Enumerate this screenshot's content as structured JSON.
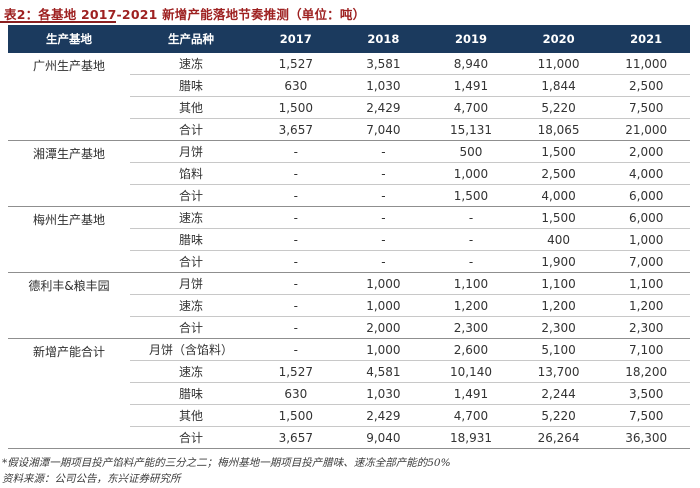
{
  "title": "表2：各基地 2017-2021 新增产能落地节奏推测（单位：吨）",
  "colors": {
    "title_red": "#9e2121",
    "header_bg": "#1b3a5e",
    "header_text": "#ffffff",
    "body_text": "#333333",
    "row_separator": "#c8c8c8",
    "group_separator": "#8f8f8f"
  },
  "table": {
    "base_header": "生产基地",
    "product_header": "生产品种",
    "years": [
      "2017",
      "2018",
      "2019",
      "2020",
      "2021"
    ],
    "groups": [
      {
        "base": "广州生产基地",
        "rows": [
          {
            "product": "速冻",
            "values": [
              "1,527",
              "3,581",
              "8,940",
              "11,000",
              "11,000"
            ]
          },
          {
            "product": "腊味",
            "values": [
              "630",
              "1,030",
              "1,491",
              "1,844",
              "2,500"
            ]
          },
          {
            "product": "其他",
            "values": [
              "1,500",
              "2,429",
              "4,700",
              "5,220",
              "7,500"
            ]
          },
          {
            "product": "合计",
            "values": [
              "3,657",
              "7,040",
              "15,131",
              "18,065",
              "21,000"
            ]
          }
        ]
      },
      {
        "base": "湘潭生产基地",
        "rows": [
          {
            "product": "月饼",
            "values": [
              "-",
              "-",
              "500",
              "1,500",
              "2,000"
            ]
          },
          {
            "product": "馅料",
            "values": [
              "-",
              "-",
              "1,000",
              "2,500",
              "4,000"
            ]
          },
          {
            "product": "合计",
            "values": [
              "-",
              "-",
              "1,500",
              "4,000",
              "6,000"
            ]
          }
        ]
      },
      {
        "base": "梅州生产基地",
        "rows": [
          {
            "product": "速冻",
            "values": [
              "-",
              "-",
              "-",
              "1,500",
              "6,000"
            ]
          },
          {
            "product": "腊味",
            "values": [
              "-",
              "-",
              "-",
              "400",
              "1,000"
            ]
          },
          {
            "product": "合计",
            "values": [
              "-",
              "-",
              "-",
              "1,900",
              "7,000"
            ]
          }
        ]
      },
      {
        "base": "德利丰&粮丰园",
        "rows": [
          {
            "product": "月饼",
            "values": [
              "-",
              "1,000",
              "1,100",
              "1,100",
              "1,100"
            ]
          },
          {
            "product": "速冻",
            "values": [
              "-",
              "1,000",
              "1,200",
              "1,200",
              "1,200"
            ]
          },
          {
            "product": "合计",
            "values": [
              "-",
              "2,000",
              "2,300",
              "2,300",
              "2,300"
            ]
          }
        ]
      },
      {
        "base": "新增产能合计",
        "rows": [
          {
            "product": "月饼（含馅料）",
            "values": [
              "-",
              "1,000",
              "2,600",
              "5,100",
              "7,100"
            ]
          },
          {
            "product": "速冻",
            "values": [
              "1,527",
              "4,581",
              "10,140",
              "13,700",
              "18,200"
            ]
          },
          {
            "product": "腊味",
            "values": [
              "630",
              "1,030",
              "1,491",
              "2,244",
              "3,500"
            ]
          },
          {
            "product": "其他",
            "values": [
              "1,500",
              "2,429",
              "4,700",
              "5,220",
              "7,500"
            ]
          },
          {
            "product": "合计",
            "values": [
              "3,657",
              "9,040",
              "18,931",
              "26,264",
              "36,300"
            ]
          }
        ]
      }
    ]
  },
  "footnotes": {
    "assumption": "*假设湘潭一期项目投产馅料产能的三分之二；梅州基地一期项目投产腊味、速冻全部产能的50%",
    "source": "资料来源：公司公告，东兴证券研究所"
  }
}
